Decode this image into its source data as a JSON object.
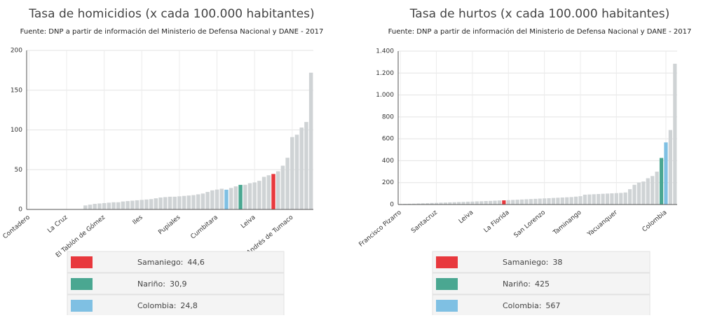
{
  "chart_data": [
    {
      "type": "bar",
      "title": "Tasa de homicidios (x cada 100.000 habitantes)",
      "subtitle": "Fuente: DNP a partir de información del Ministerio de Defensa Nacional y DANE - 2017",
      "categories": [
        "Contadero",
        null,
        null,
        null,
        null,
        null,
        null,
        null,
        "La Cruz",
        null,
        null,
        null,
        null,
        null,
        null,
        null,
        "El Tablón de Gómez",
        null,
        null,
        null,
        null,
        null,
        null,
        null,
        "Iles",
        null,
        null,
        null,
        null,
        null,
        null,
        null,
        "Pupiales",
        null,
        null,
        null,
        null,
        null,
        null,
        null,
        "Cumbitara",
        null,
        null,
        null,
        null,
        null,
        null,
        null,
        "Leiva",
        null,
        null,
        null,
        null,
        null,
        null,
        null,
        "San Andrés de Tumaco",
        null,
        null,
        null,
        null
      ],
      "values": [
        0,
        0,
        0,
        0,
        0,
        0,
        0,
        0,
        0,
        0,
        0,
        0,
        5,
        6,
        7,
        7.5,
        8,
        8.5,
        9,
        9,
        10,
        10.5,
        11,
        11.5,
        12,
        12.5,
        13,
        14,
        15,
        15.5,
        16,
        16,
        16.5,
        17,
        17.5,
        18,
        19,
        20,
        22,
        24,
        25,
        26,
        24.8,
        27,
        29,
        30.9,
        31,
        33,
        34,
        36,
        41,
        43,
        44.6,
        48,
        55,
        65,
        91,
        94,
        103,
        110,
        172
      ],
      "colors": [
        "#cfd3d5",
        "#cfd3d5",
        "#cfd3d5",
        "#cfd3d5",
        "#cfd3d5",
        "#cfd3d5",
        "#cfd3d5",
        "#cfd3d5",
        "#cfd3d5",
        "#cfd3d5",
        "#cfd3d5",
        "#cfd3d5",
        "#cfd3d5",
        "#cfd3d5",
        "#cfd3d5",
        "#cfd3d5",
        "#cfd3d5",
        "#cfd3d5",
        "#cfd3d5",
        "#cfd3d5",
        "#cfd3d5",
        "#cfd3d5",
        "#cfd3d5",
        "#cfd3d5",
        "#cfd3d5",
        "#cfd3d5",
        "#cfd3d5",
        "#cfd3d5",
        "#cfd3d5",
        "#cfd3d5",
        "#cfd3d5",
        "#cfd3d5",
        "#cfd3d5",
        "#cfd3d5",
        "#cfd3d5",
        "#cfd3d5",
        "#cfd3d5",
        "#cfd3d5",
        "#cfd3d5",
        "#cfd3d5",
        "#cfd3d5",
        "#cfd3d5",
        "#7fc0e3",
        "#cfd3d5",
        "#cfd3d5",
        "#4aa791",
        "#cfd3d5",
        "#cfd3d5",
        "#cfd3d5",
        "#cfd3d5",
        "#cfd3d5",
        "#cfd3d5",
        "#e8383d",
        "#cfd3d5",
        "#cfd3d5",
        "#cfd3d5",
        "#cfd3d5",
        "#cfd3d5",
        "#cfd3d5",
        "#cfd3d5",
        "#cfd3d5"
      ],
      "ylim": [
        0,
        200
      ],
      "yticks": [
        0,
        50,
        100,
        150,
        200
      ],
      "grid": true,
      "legend": [
        {
          "label": "Samaniego:",
          "value": "44,6",
          "color": "#e8383d"
        },
        {
          "label": "Nariño:",
          "value": "30,9",
          "color": "#4aa791"
        },
        {
          "label": "Colombia:",
          "value": "24,8",
          "color": "#7fc0e3"
        }
      ]
    },
    {
      "type": "bar",
      "title": "Tasa de hurtos (x cada 100.000 habitantes)",
      "subtitle": "Fuente: DNP a partir de información del Ministerio de Defensa Nacional y DANE - 2017",
      "categories": [
        "Francisco Pizarro",
        null,
        null,
        null,
        null,
        null,
        null,
        null,
        "Santacruz",
        null,
        null,
        null,
        null,
        null,
        null,
        null,
        "Leiva",
        null,
        null,
        null,
        null,
        null,
        null,
        null,
        "La Florida",
        null,
        null,
        null,
        null,
        null,
        null,
        null,
        "San Lorenzo",
        null,
        null,
        null,
        null,
        null,
        null,
        null,
        "Taminango",
        null,
        null,
        null,
        null,
        null,
        null,
        null,
        "Yacuanquer",
        null,
        null,
        null,
        null,
        null,
        null,
        null,
        null,
        null,
        null,
        "Colombia",
        null,
        null
      ],
      "values": [
        5,
        6,
        7,
        8,
        10,
        11,
        12,
        14,
        15,
        17,
        18,
        20,
        21,
        23,
        24,
        26,
        27,
        29,
        30,
        32,
        33,
        35,
        37,
        38,
        40,
        42,
        44,
        46,
        48,
        50,
        52,
        54,
        56,
        58,
        60,
        62,
        64,
        66,
        68,
        72,
        76,
        90,
        92,
        94,
        96,
        98,
        100,
        102,
        104,
        106,
        110,
        140,
        180,
        200,
        210,
        240,
        260,
        300,
        425,
        567,
        680,
        1285
      ],
      "colors": [
        "#cfd3d5",
        "#cfd3d5",
        "#cfd3d5",
        "#cfd3d5",
        "#cfd3d5",
        "#cfd3d5",
        "#cfd3d5",
        "#cfd3d5",
        "#cfd3d5",
        "#cfd3d5",
        "#cfd3d5",
        "#cfd3d5",
        "#cfd3d5",
        "#cfd3d5",
        "#cfd3d5",
        "#cfd3d5",
        "#cfd3d5",
        "#cfd3d5",
        "#cfd3d5",
        "#cfd3d5",
        "#cfd3d5",
        "#cfd3d5",
        "#cfd3d5",
        "#e8383d",
        "#cfd3d5",
        "#cfd3d5",
        "#cfd3d5",
        "#cfd3d5",
        "#cfd3d5",
        "#cfd3d5",
        "#cfd3d5",
        "#cfd3d5",
        "#cfd3d5",
        "#cfd3d5",
        "#cfd3d5",
        "#cfd3d5",
        "#cfd3d5",
        "#cfd3d5",
        "#cfd3d5",
        "#cfd3d5",
        "#cfd3d5",
        "#cfd3d5",
        "#cfd3d5",
        "#cfd3d5",
        "#cfd3d5",
        "#cfd3d5",
        "#cfd3d5",
        "#cfd3d5",
        "#cfd3d5",
        "#cfd3d5",
        "#cfd3d5",
        "#cfd3d5",
        "#cfd3d5",
        "#cfd3d5",
        "#cfd3d5",
        "#cfd3d5",
        "#cfd3d5",
        "#cfd3d5",
        "#4aa791",
        "#7fc0e3",
        "#cfd3d5",
        "#cfd3d5"
      ],
      "ylim": [
        0,
        1400
      ],
      "yticks": [
        0,
        200,
        400,
        600,
        800,
        {
          "value": 1000,
          "label": "1.000"
        },
        {
          "value": 1200,
          "label": "1.200"
        },
        {
          "value": 1400,
          "label": "1.400"
        }
      ],
      "grid": true,
      "legend": [
        {
          "label": "Samaniego:",
          "value": "38",
          "color": "#e8383d"
        },
        {
          "label": "Nariño:",
          "value": "425",
          "color": "#4aa791"
        },
        {
          "label": "Colombia:",
          "value": "567",
          "color": "#7fc0e3"
        }
      ]
    }
  ]
}
